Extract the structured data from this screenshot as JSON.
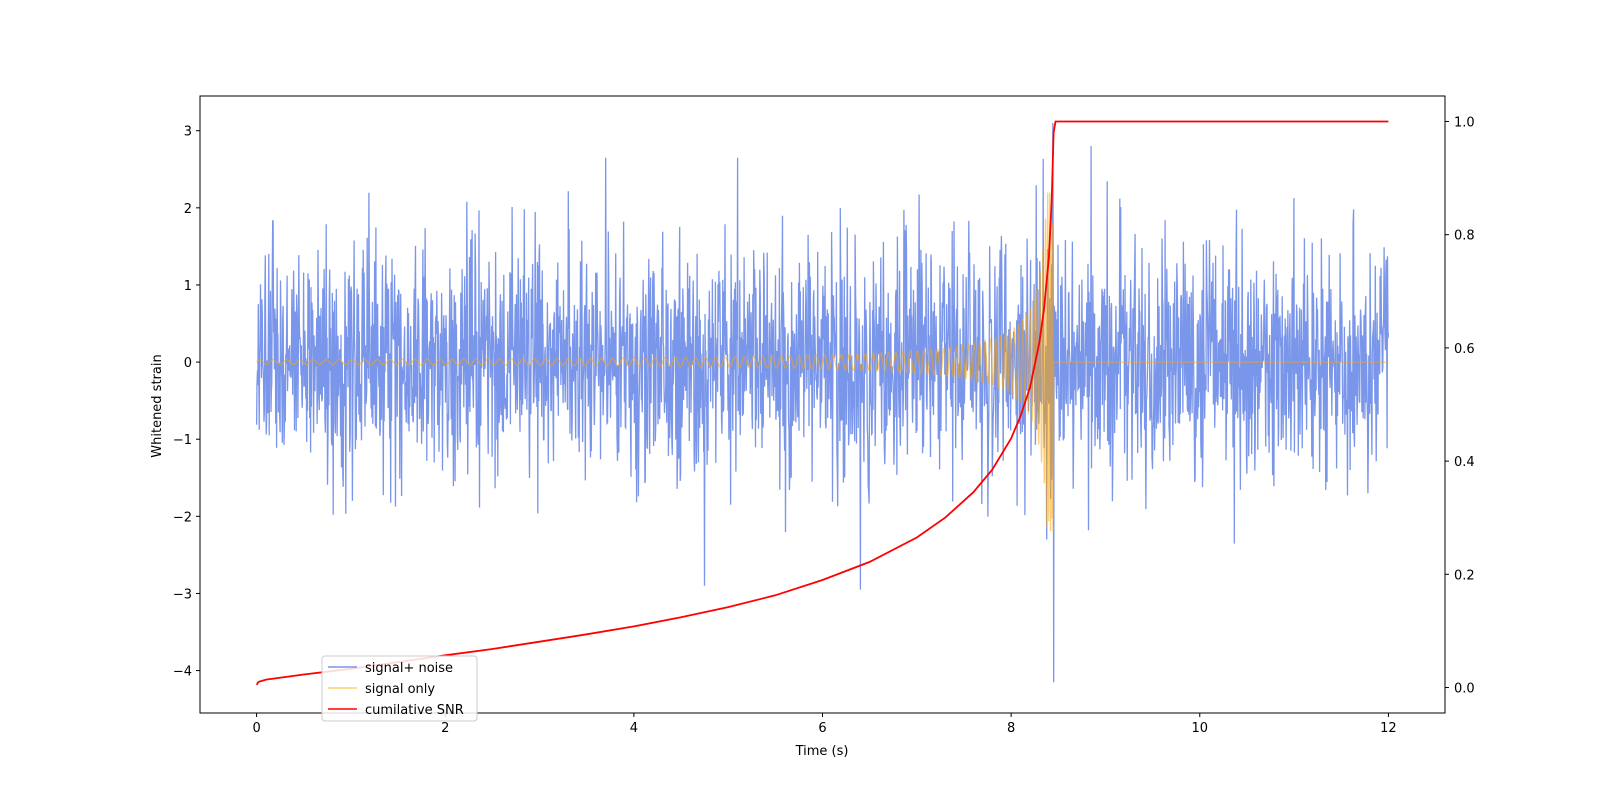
{
  "chart_data": {
    "type": "line",
    "xlabel": "Time (s)",
    "ylabel": "Whitened strain",
    "xlim": [
      -0.6,
      12.6
    ],
    "ylim": [
      -4.55,
      3.45
    ],
    "y2lim": [
      -0.045,
      1.045
    ],
    "xticks": [
      0,
      2,
      4,
      6,
      8,
      10,
      12
    ],
    "xtick_labels": [
      "0",
      "2",
      "4",
      "6",
      "8",
      "10",
      "12"
    ],
    "yticks": [
      -4,
      -3,
      -2,
      -1,
      0,
      1,
      2,
      3
    ],
    "ytick_labels": [
      "−4",
      "−3",
      "−2",
      "−1",
      "0",
      "1",
      "2",
      "3"
    ],
    "y2ticks": [
      0.0,
      0.2,
      0.4,
      0.6,
      0.8,
      1.0
    ],
    "y2tick_labels": [
      "0.0",
      "0.2",
      "0.4",
      "0.6",
      "0.8",
      "1.0"
    ],
    "grid": false,
    "legend_position": "bottom-left",
    "merger_time": 8.45,
    "series": [
      {
        "name": "signal+ noise",
        "axis": "left",
        "color": "#4169e1",
        "opacity": 0.7,
        "description_values": {
          "x_range": [
            0,
            12
          ],
          "mean": 0,
          "std": 0.75,
          "max": 3.1,
          "min": -4.15,
          "extreme_points": [
            {
              "x": 8.44,
              "y": 3.1
            },
            {
              "x": 8.45,
              "y": -4.15
            },
            {
              "x": 8.85,
              "y": 2.8
            },
            {
              "x": 3.7,
              "y": 2.65
            },
            {
              "x": 5.1,
              "y": 2.65
            },
            {
              "x": 4.75,
              "y": -2.9
            },
            {
              "x": 6.4,
              "y": -2.95
            }
          ]
        }
      },
      {
        "name": "signal only",
        "axis": "left",
        "color": "#ffa500",
        "opacity": 0.55,
        "chirp": {
          "t_start": 0,
          "t_merge": 8.45,
          "t_end": 12,
          "amp_start": 0.03,
          "amp_peak": 2.2,
          "freq_start_hz": 7,
          "freq_end_hz": 60,
          "post_merge_value": 0.0
        }
      },
      {
        "name": "cumilative SNR",
        "axis": "right",
        "color": "#ff0000",
        "x": [
          0,
          0.02,
          0.1,
          0.5,
          1,
          1.5,
          2,
          2.5,
          3,
          3.5,
          4,
          4.5,
          5,
          5.5,
          6,
          6.5,
          7,
          7.3,
          7.6,
          7.8,
          8.0,
          8.1,
          8.2,
          8.3,
          8.35,
          8.4,
          8.43,
          8.45,
          8.47,
          8.5,
          9,
          10,
          11,
          12
        ],
        "values": [
          0.005,
          0.01,
          0.014,
          0.023,
          0.033,
          0.045,
          0.057,
          0.068,
          0.081,
          0.094,
          0.108,
          0.124,
          0.142,
          0.163,
          0.19,
          0.222,
          0.265,
          0.3,
          0.345,
          0.385,
          0.44,
          0.48,
          0.53,
          0.61,
          0.67,
          0.76,
          0.86,
          0.98,
          1.0,
          1.0,
          1.0,
          1.0,
          1.0,
          1.0
        ]
      }
    ]
  }
}
